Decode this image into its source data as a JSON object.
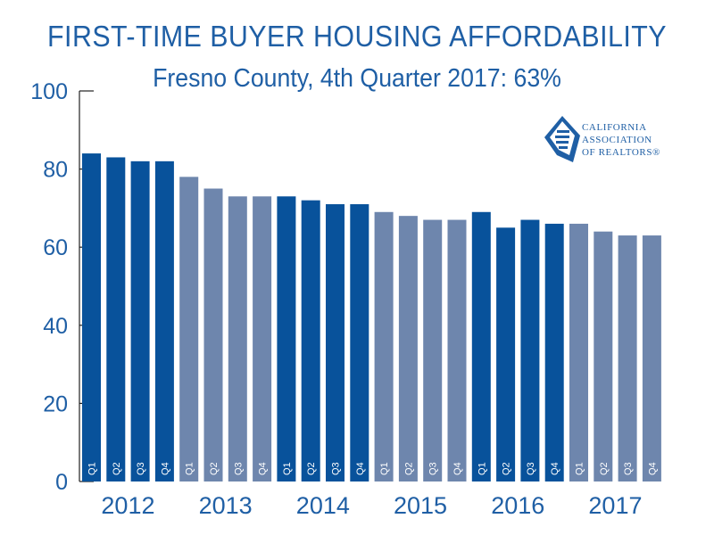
{
  "title": "FIRST-TIME BUYER HOUSING AFFORDABILITY",
  "subtitle": "Fresno County, 4th Quarter 2017: 63%",
  "logo": {
    "icon": "car-logo-icon",
    "lines": [
      "CALIFORNIA",
      "ASSOCIATION",
      "OF REALTORS®"
    ]
  },
  "colors": {
    "dark": "#08529b",
    "light": "#6e86ad",
    "text": "#1f5fa5",
    "axis": "#222222"
  },
  "chart_data": {
    "type": "bar",
    "title": "FIRST-TIME BUYER HOUSING AFFORDABILITY",
    "subtitle": "Fresno County, 4th Quarter 2017: 63%",
    "ylim": [
      0,
      100
    ],
    "yticks": [
      0,
      20,
      40,
      60,
      80,
      100
    ],
    "years": [
      "2012",
      "2013",
      "2014",
      "2015",
      "2016",
      "2017"
    ],
    "quarter_labels": [
      "Q1",
      "Q2",
      "Q3",
      "Q4"
    ],
    "categories": [
      "2012 Q1",
      "2012 Q2",
      "2012 Q3",
      "2012 Q4",
      "2013 Q1",
      "2013 Q2",
      "2013 Q3",
      "2013 Q4",
      "2014 Q1",
      "2014 Q2",
      "2014 Q3",
      "2014 Q4",
      "2015 Q1",
      "2015 Q2",
      "2015 Q3",
      "2015 Q4",
      "2016 Q1",
      "2016 Q2",
      "2016 Q3",
      "2016 Q4",
      "2017 Q1",
      "2017 Q2",
      "2017 Q3",
      "2017 Q4"
    ],
    "values": [
      84,
      83,
      82,
      82,
      78,
      75,
      73,
      73,
      73,
      72,
      71,
      71,
      69,
      68,
      67,
      67,
      69,
      65,
      67,
      66,
      66,
      64,
      63,
      63
    ],
    "grid": false
  }
}
